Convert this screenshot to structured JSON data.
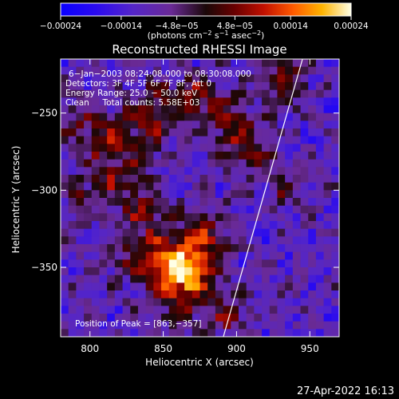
{
  "chart_data": {
    "type": "heatmap",
    "title": "Reconstructed RHESSI Image",
    "colorbar": {
      "ticks": [
        "−0.00024",
        "−0.00014",
        "−4.8e−05",
        "4.8e−05",
        "0.00014",
        "0.00024"
      ],
      "tick_values": [
        -0.00024,
        -0.00014,
        -4.8e-05,
        4.8e-05,
        0.00014,
        0.00024
      ],
      "range": [
        -0.00024,
        0.00024
      ],
      "units_main": "(photons cm",
      "units_sup1": "−2",
      "units_mid1": " s",
      "units_sup2": "−1",
      "units_mid2": " asec",
      "units_sup3": "−2",
      "units_end": ")"
    },
    "xlabel": "Heliocentric X (arcsec)",
    "ylabel": "Heliocentric Y (arcsec)",
    "xlim": [
      780,
      970
    ],
    "ylim": [
      -395,
      -215
    ],
    "x_ticks": [
      800,
      850,
      900,
      950
    ],
    "y_ticks": [
      -250,
      -300,
      -350
    ],
    "y_tick_labels": [
      "−250",
      "−300",
      "−350"
    ],
    "x_tick_labels": [
      "800",
      "850",
      "900",
      "950"
    ],
    "annotations": [
      "6−Jan−2003 08:24:08.000 to 08:30:08.000",
      "Detectors: 3F 4F 5F 6F 7F 8F, Att 0",
      "Energy Range: 25.0 − 50.0 keV",
      "Clean     Total counts: 5.58E+03"
    ],
    "peak_label": "Position of Peak = [863,−357]",
    "peak": [
      863,
      -357
    ],
    "limb_line": [
      [
        891,
        -395
      ],
      [
        945,
        -215
      ]
    ],
    "hotspots": [
      {
        "x": 863,
        "y": -357,
        "amp": 0.00024,
        "sx": 14,
        "sy": 16
      },
      {
        "x": 845,
        "y": -345,
        "amp": 0.00016,
        "sx": 18,
        "sy": 12
      },
      {
        "x": 880,
        "y": -330,
        "amp": 0.00012,
        "sx": 12,
        "sy": 14
      },
      {
        "x": 835,
        "y": -315,
        "amp": 0.0001,
        "sx": 12,
        "sy": 10
      },
      {
        "x": 895,
        "y": -382,
        "amp": 0.00012,
        "sx": 8,
        "sy": 8
      },
      {
        "x": 820,
        "y": -290,
        "amp": 0.00012,
        "sx": 14,
        "sy": 12
      },
      {
        "x": 810,
        "y": -265,
        "amp": 0.00012,
        "sx": 10,
        "sy": 10
      },
      {
        "x": 840,
        "y": -255,
        "amp": 0.00012,
        "sx": 12,
        "sy": 14
      },
      {
        "x": 870,
        "y": -240,
        "amp": 0.00013,
        "sx": 16,
        "sy": 10
      },
      {
        "x": 895,
        "y": -260,
        "amp": 0.0001,
        "sx": 12,
        "sy": 12
      },
      {
        "x": 910,
        "y": -275,
        "amp": 0.00011,
        "sx": 10,
        "sy": 12
      },
      {
        "x": 935,
        "y": -230,
        "amp": 0.00013,
        "sx": 10,
        "sy": 12
      },
      {
        "x": 790,
        "y": -255,
        "amp": 0.0001,
        "sx": 8,
        "sy": 8
      },
      {
        "x": 930,
        "y": -300,
        "amp": 8e-05,
        "sx": 8,
        "sy": 10
      },
      {
        "x": 795,
        "y": -305,
        "amp": 8e-05,
        "sx": 8,
        "sy": 10
      }
    ]
  },
  "footer": {
    "timestamp": "27-Apr-2022 16:13"
  }
}
